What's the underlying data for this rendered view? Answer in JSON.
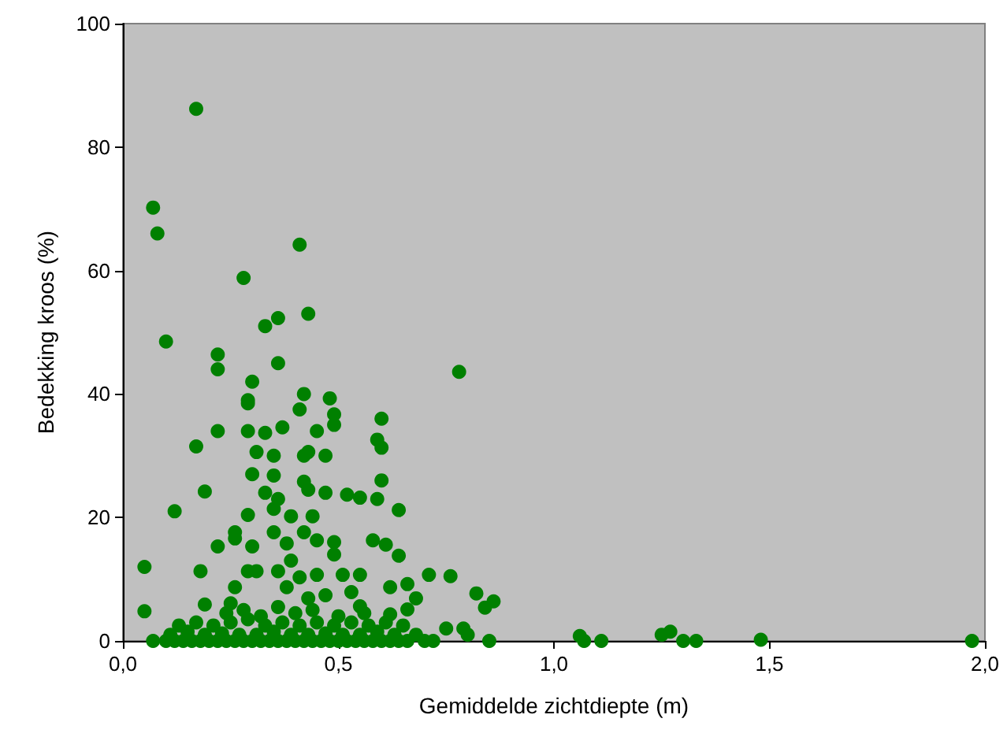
{
  "chart_data": {
    "type": "scatter",
    "xlabel": "Gemiddelde zichtdiepte (m)",
    "ylabel": "Bedekking kroos (%)",
    "xlim": [
      0,
      2
    ],
    "ylim": [
      0,
      100
    ],
    "xticks": [
      {
        "value": 0,
        "label": "0,0"
      },
      {
        "value": 0.5,
        "label": "0,5"
      },
      {
        "value": 1,
        "label": "1,0"
      },
      {
        "value": 1.5,
        "label": "1,5"
      },
      {
        "value": 2,
        "label": "2,0"
      }
    ],
    "yticks": [
      0,
      20,
      40,
      60,
      80,
      100
    ],
    "grid": false,
    "marker": "circle",
    "series": [
      {
        "color": "#008000",
        "x": [
          0.17,
          0.07,
          0.08,
          0.41,
          0.28,
          0.43,
          0.33,
          0.36,
          0.1,
          0.22,
          0.22,
          0.36,
          0.3,
          0.29,
          0.29,
          0.42,
          0.48,
          0.41,
          0.49,
          0.49,
          0.22,
          0.29,
          0.33,
          0.37,
          0.45,
          0.6,
          0.17,
          0.31,
          0.35,
          0.42,
          0.43,
          0.47,
          0.59,
          0.6,
          0.3,
          0.35,
          0.42,
          0.6,
          0.19,
          0.33,
          0.43,
          0.47,
          0.52,
          0.55,
          0.59,
          0.12,
          0.64,
          0.36,
          0.35,
          0.39,
          0.44,
          0.29,
          0.26,
          0.26,
          0.22,
          0.3,
          0.35,
          0.38,
          0.42,
          0.45,
          0.49,
          0.58,
          0.61,
          0.64,
          0.49,
          0.39,
          0.05,
          0.18,
          0.29,
          0.31,
          0.36,
          0.41,
          0.45,
          0.51,
          0.55,
          0.71,
          0.62,
          0.66,
          0.68,
          0.26,
          0.25,
          0.53,
          0.47,
          0.38,
          0.43,
          0.55,
          0.66,
          0.05,
          0.19,
          0.62,
          0.76,
          0.78,
          0.82,
          0.84,
          0.86,
          0.75,
          0.79,
          0.8,
          0.85,
          1.06,
          1.07,
          1.11,
          1.25,
          1.27,
          1.3,
          1.33,
          1.48,
          1.97,
          0.07,
          0.1,
          0.12,
          0.14,
          0.16,
          0.18,
          0.2,
          0.22,
          0.24,
          0.26,
          0.28,
          0.3,
          0.32,
          0.34,
          0.36,
          0.38,
          0.4,
          0.42,
          0.44,
          0.46,
          0.48,
          0.5,
          0.52,
          0.54,
          0.56,
          0.58,
          0.6,
          0.62,
          0.64,
          0.66,
          0.7,
          0.72,
          0.11,
          0.15,
          0.19,
          0.23,
          0.27,
          0.31,
          0.35,
          0.39,
          0.43,
          0.47,
          0.51,
          0.55,
          0.59,
          0.63,
          0.68,
          0.13,
          0.17,
          0.21,
          0.25,
          0.29,
          0.33,
          0.37,
          0.41,
          0.45,
          0.49,
          0.53,
          0.57,
          0.61,
          0.65,
          0.24,
          0.28,
          0.32,
          0.36,
          0.4,
          0.44,
          0.5,
          0.56
        ],
        "values": [
          86.2,
          70.2,
          66,
          64.2,
          58.8,
          53,
          51,
          52.3,
          48.5,
          46.4,
          44,
          45,
          42,
          39,
          38.5,
          40,
          39.3,
          37.5,
          36.7,
          35,
          34,
          34,
          33.7,
          34.6,
          34,
          36,
          31.5,
          30.6,
          30,
          30,
          30.6,
          30,
          32.6,
          31.3,
          27,
          26.8,
          25.8,
          26,
          24.2,
          24,
          24.5,
          24,
          23.7,
          23.2,
          23,
          21,
          21.2,
          23,
          21.4,
          20.2,
          20.2,
          20.4,
          17.6,
          16.6,
          15.3,
          15.3,
          17.6,
          15.8,
          17.6,
          16.3,
          16,
          16.3,
          15.6,
          13.8,
          14,
          13,
          12,
          11.3,
          11.3,
          11.3,
          11.3,
          10.3,
          10.7,
          10.7,
          10.7,
          10.7,
          8.7,
          9.2,
          6.9,
          8.7,
          6.1,
          7.9,
          7.4,
          8.7,
          6.9,
          5.6,
          5.1,
          4.8,
          5.9,
          4.3,
          10.5,
          43.6,
          7.7,
          5.4,
          6.4,
          2,
          2,
          1,
          0,
          0.8,
          0,
          0,
          1,
          1.5,
          0,
          0,
          0.2,
          0,
          0,
          0,
          0,
          0,
          0,
          0,
          0,
          0,
          0,
          0,
          0,
          0,
          0,
          0,
          0,
          0,
          0,
          0,
          0,
          0,
          0,
          0,
          0,
          0,
          0,
          0,
          0,
          0,
          0,
          0,
          0,
          0,
          1,
          1.5,
          1,
          1.2,
          1,
          1,
          1.5,
          1,
          1,
          1.2,
          1,
          1,
          1.5,
          1,
          1,
          2.5,
          3,
          2.5,
          3,
          3.5,
          2.5,
          3,
          2.5,
          3,
          2.5,
          3,
          2.5,
          3,
          2.5,
          4.5,
          5,
          4,
          5.5,
          4.5,
          5,
          4,
          4.5
        ]
      }
    ]
  }
}
